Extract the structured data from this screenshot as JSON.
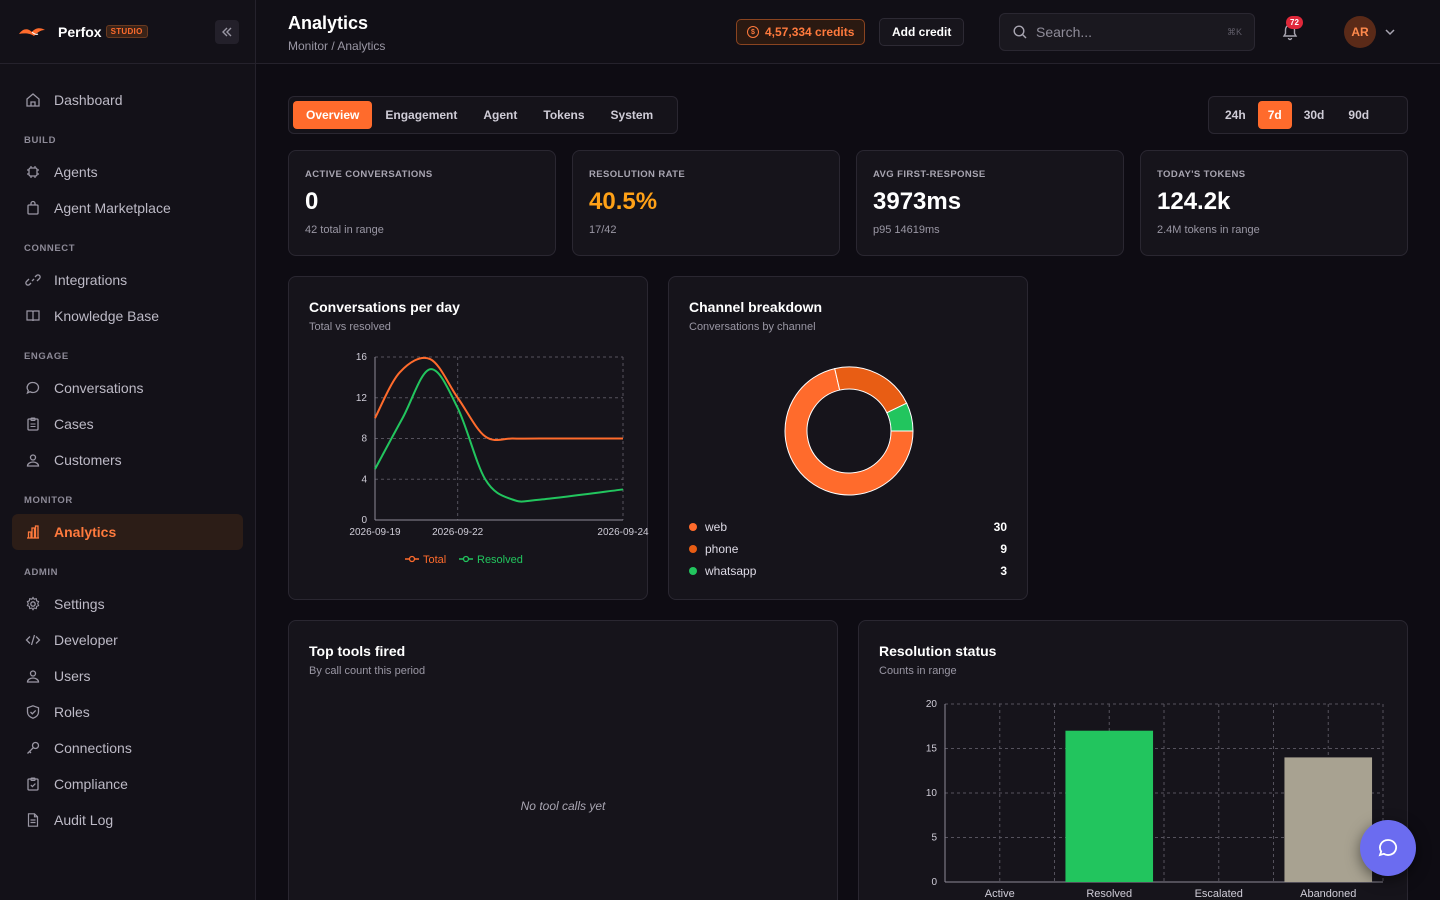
{
  "brand": {
    "name": "Perfox",
    "tag": "STUDIO"
  },
  "sidebar": {
    "top": [
      {
        "label": "Dashboard",
        "icon": "home-icon"
      }
    ],
    "sections": [
      {
        "title": "BUILD",
        "items": [
          {
            "label": "Agents",
            "icon": "cpu-icon"
          },
          {
            "label": "Agent Marketplace",
            "icon": "shopping-bag-icon"
          }
        ]
      },
      {
        "title": "CONNECT",
        "items": [
          {
            "label": "Integrations",
            "icon": "link-icon"
          },
          {
            "label": "Knowledge Base",
            "icon": "book-icon"
          }
        ]
      },
      {
        "title": "ENGAGE",
        "items": [
          {
            "label": "Conversations",
            "icon": "chat-icon"
          },
          {
            "label": "Cases",
            "icon": "clipboard-icon"
          },
          {
            "label": "Customers",
            "icon": "users-icon"
          }
        ]
      },
      {
        "title": "MONITOR",
        "items": [
          {
            "label": "Analytics",
            "icon": "bar-chart-icon",
            "active": true
          }
        ]
      },
      {
        "title": "ADMIN",
        "items": [
          {
            "label": "Settings",
            "icon": "gear-icon"
          },
          {
            "label": "Developer",
            "icon": "code-icon"
          },
          {
            "label": "Users",
            "icon": "user-icon"
          },
          {
            "label": "Roles",
            "icon": "shield-icon"
          },
          {
            "label": "Connections",
            "icon": "key-icon"
          },
          {
            "label": "Compliance",
            "icon": "clipboard-check-icon"
          },
          {
            "label": "Audit Log",
            "icon": "file-icon"
          }
        ]
      }
    ]
  },
  "header": {
    "title": "Analytics",
    "breadcrumb": "Monitor / Analytics",
    "credits": "4,57,334 credits",
    "add_credit": "Add credit",
    "search_placeholder": "Search...",
    "search_shortcut": "⌘K",
    "notifications": "72",
    "avatar": "AR"
  },
  "tabs": [
    "Overview",
    "Engagement",
    "Agent",
    "Tokens",
    "System"
  ],
  "active_tab": "Overview",
  "ranges": [
    "24h",
    "7d",
    "30d",
    "90d"
  ],
  "active_range": "7d",
  "stats": [
    {
      "label": "ACTIVE CONVERSATIONS",
      "value": "0",
      "sub": "42 total in range"
    },
    {
      "label": "RESOLUTION RATE",
      "value": "40.5%",
      "sub": "17/42"
    },
    {
      "label": "AVG FIRST-RESPONSE",
      "value": "3973ms",
      "sub": "p95 14619ms"
    },
    {
      "label": "TODAY'S TOKENS",
      "value": "124.2k",
      "sub": "2.4M tokens in range"
    }
  ],
  "cards": {
    "conversations": {
      "title": "Conversations per day",
      "subtitle": "Total vs resolved"
    },
    "channels": {
      "title": "Channel breakdown",
      "subtitle": "Conversations by channel"
    },
    "tools": {
      "title": "Top tools fired",
      "subtitle": "By call count this period",
      "empty": "No tool calls yet"
    },
    "resolution": {
      "title": "Resolution status",
      "subtitle": "Counts in range"
    }
  },
  "colors": {
    "accent": "#ff6b2c",
    "green": "#22c55e",
    "gray": "#a8a291",
    "dark_orange": "#e85d14"
  },
  "chart_data": [
    {
      "type": "line",
      "x_ticks": [
        "2026-09-19",
        "2026-09-22",
        "2026-09-24"
      ],
      "ylim": [
        0,
        16
      ],
      "y_ticks": [
        0,
        4,
        8,
        12,
        16
      ],
      "series": [
        {
          "name": "Total",
          "color": "#ff6b2c",
          "points": [
            [
              0,
              10
            ],
            [
              0.9,
              14.5
            ],
            [
              2.0,
              15.8
            ],
            [
              3.0,
              12
            ],
            [
              4.0,
              8.2
            ],
            [
              5.0,
              8
            ],
            [
              6.0,
              8
            ],
            [
              9.0,
              8
            ]
          ]
        },
        {
          "name": "Resolved",
          "color": "#22c55e",
          "points": [
            [
              0,
              5
            ],
            [
              1.0,
              10
            ],
            [
              2.0,
              14.8
            ],
            [
              3.0,
              11
            ],
            [
              4.0,
              4
            ],
            [
              5.0,
              2
            ],
            [
              6.0,
              2
            ],
            [
              9.0,
              3
            ]
          ]
        }
      ]
    },
    {
      "type": "pie",
      "labels": [
        "web",
        "phone",
        "whatsapp"
      ],
      "values": [
        30,
        9,
        3
      ],
      "colors": [
        "#ff6b2c",
        "#e85d14",
        "#22c55e"
      ]
    },
    {
      "type": "bar",
      "categories": [
        "Active",
        "Resolved",
        "Escalated",
        "Abandoned"
      ],
      "values": [
        0,
        17,
        0,
        14
      ],
      "colors": [
        "#ff6b2c",
        "#22c55e",
        "#ff6b2c",
        "#a8a291"
      ],
      "ylim": [
        0,
        20
      ],
      "y_ticks": [
        0,
        5,
        10,
        15,
        20
      ]
    }
  ]
}
